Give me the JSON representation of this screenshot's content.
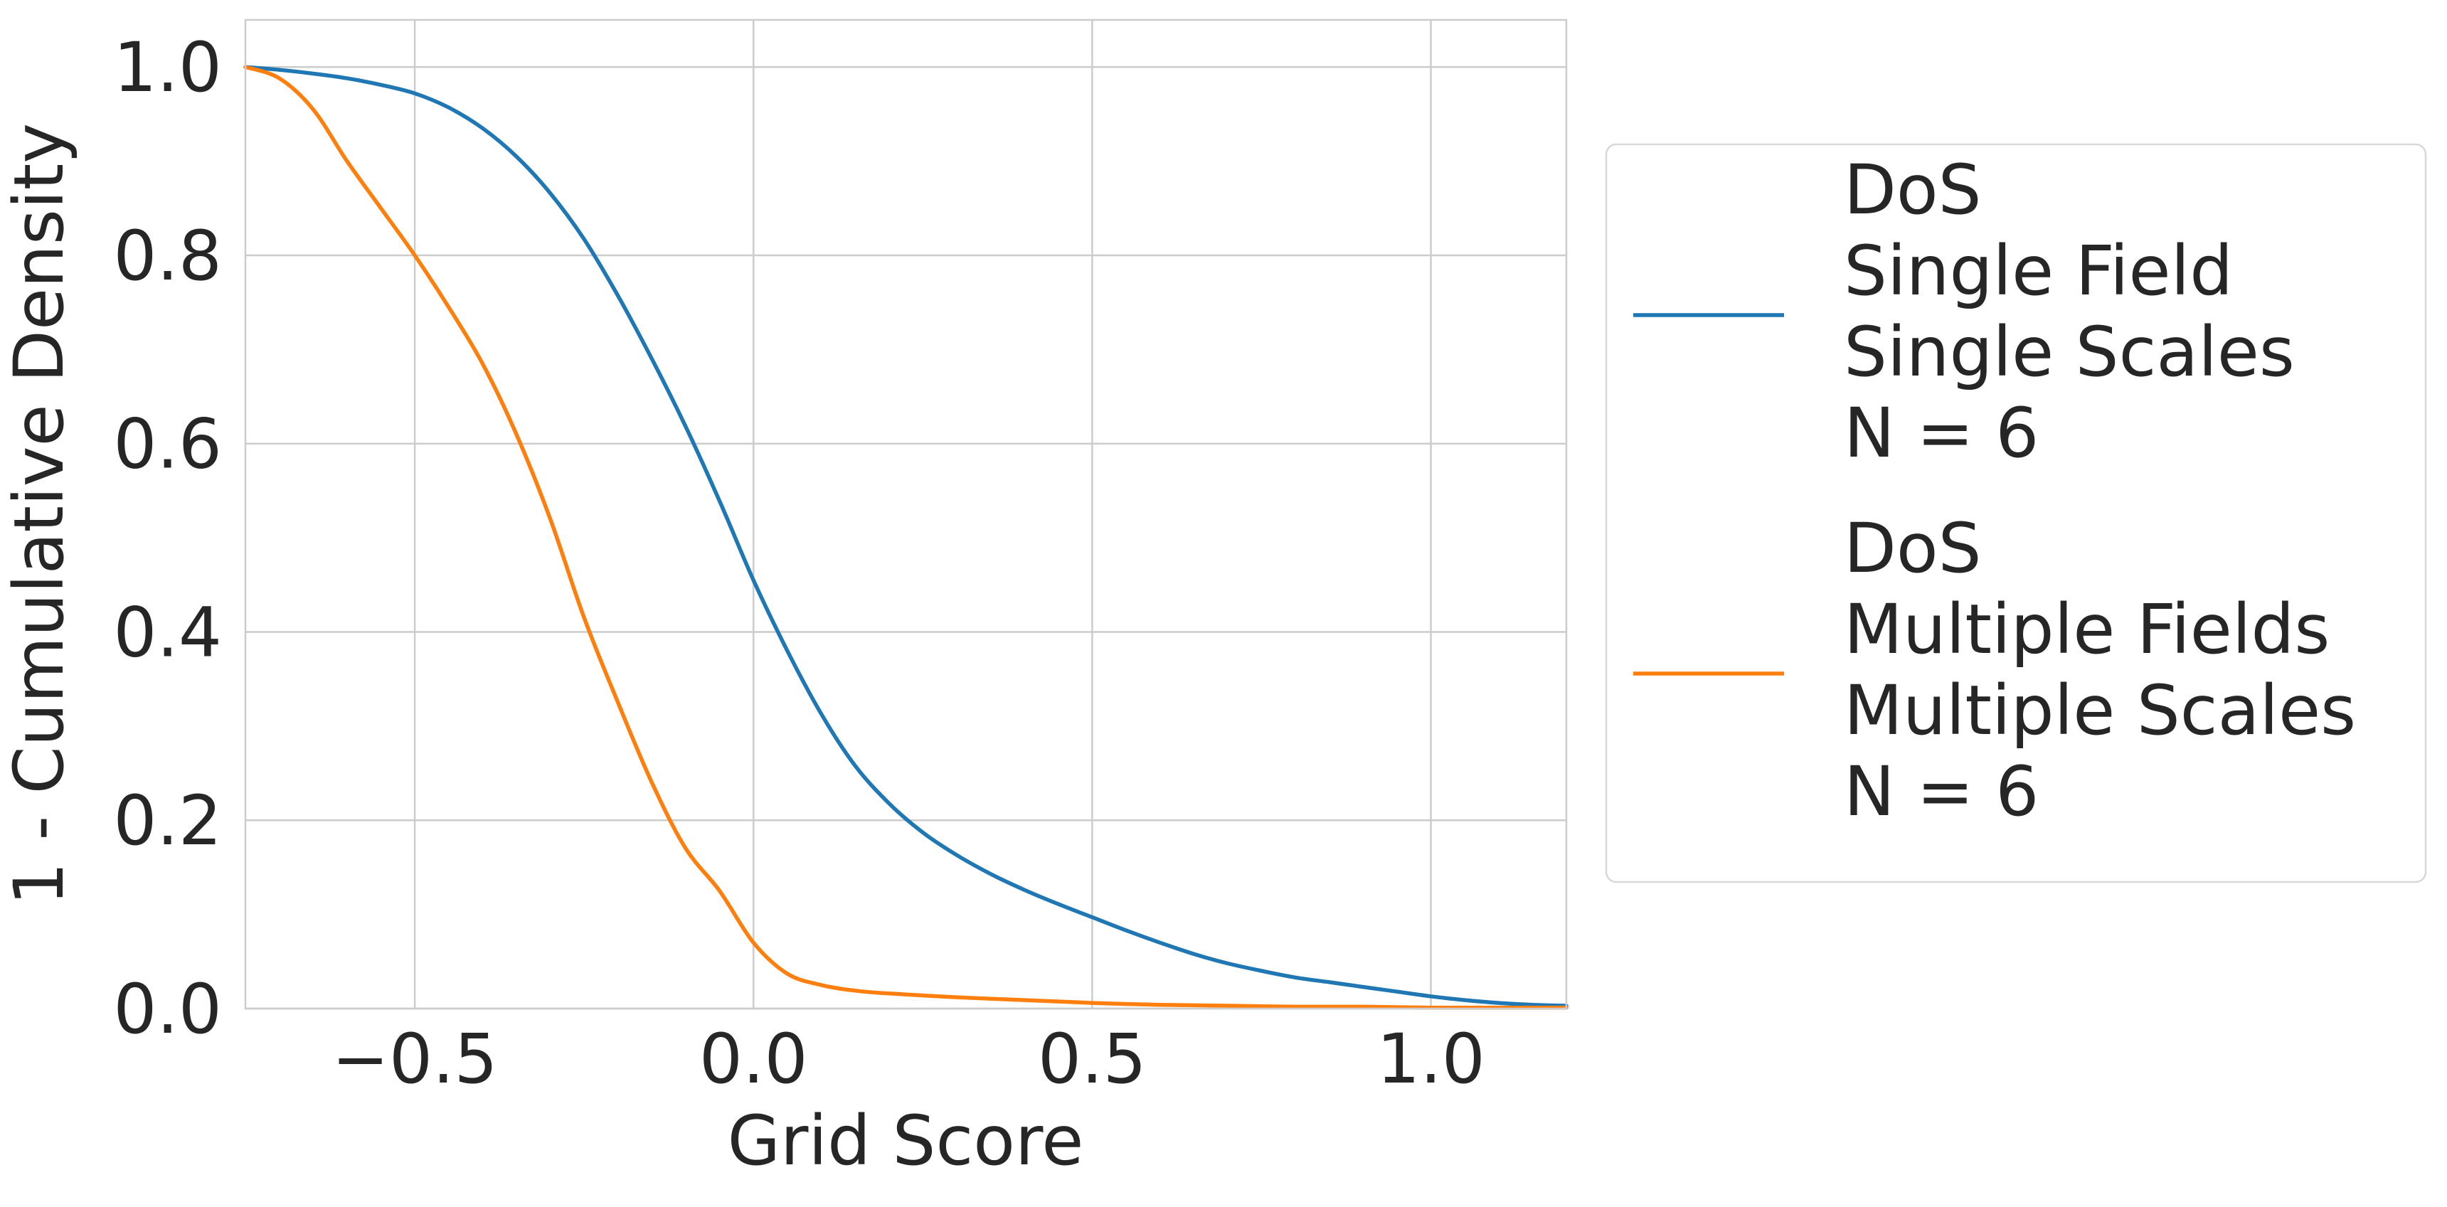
{
  "chart_data": {
    "type": "line",
    "title": "",
    "xlabel": "Grid Score",
    "ylabel": "1 - Cumulative Density",
    "xlim": [
      -0.75,
      1.2
    ],
    "ylim": [
      0.0,
      1.05
    ],
    "xticks": [
      -0.5,
      0.0,
      0.5,
      1.0
    ],
    "xtick_labels": [
      "−0.5",
      "0.0",
      "0.5",
      "1.0"
    ],
    "yticks": [
      0.0,
      0.2,
      0.4,
      0.6,
      0.8,
      1.0
    ],
    "ytick_labels": [
      "0.0",
      "0.2",
      "0.4",
      "0.6",
      "0.8",
      "1.0"
    ],
    "grid": true,
    "legend_position": "right",
    "series": [
      {
        "name": "DoS\nSingle Field\nSingle Scales\nN = 6",
        "legend_lines": [
          "DoS",
          "Single Field",
          "Single Scales",
          "N = 6"
        ],
        "color": "#1f77b4",
        "x": [
          -0.75,
          -0.7,
          -0.65,
          -0.6,
          -0.55,
          -0.5,
          -0.45,
          -0.4,
          -0.35,
          -0.3,
          -0.25,
          -0.2,
          -0.15,
          -0.1,
          -0.05,
          0.0,
          0.05,
          0.1,
          0.15,
          0.2,
          0.25,
          0.3,
          0.35,
          0.4,
          0.45,
          0.5,
          0.55,
          0.6,
          0.65,
          0.7,
          0.75,
          0.8,
          0.85,
          0.9,
          0.95,
          1.0,
          1.05,
          1.1,
          1.15,
          1.2
        ],
        "y": [
          1.0,
          0.997,
          0.993,
          0.988,
          0.981,
          0.972,
          0.957,
          0.935,
          0.905,
          0.866,
          0.817,
          0.757,
          0.69,
          0.618,
          0.539,
          0.455,
          0.38,
          0.313,
          0.258,
          0.218,
          0.187,
          0.163,
          0.143,
          0.126,
          0.111,
          0.097,
          0.083,
          0.07,
          0.058,
          0.048,
          0.04,
          0.033,
          0.028,
          0.023,
          0.018,
          0.013,
          0.009,
          0.006,
          0.004,
          0.003
        ]
      },
      {
        "name": "DoS\nMultiple Fields\nMultiple Scales\nN = 6",
        "legend_lines": [
          "DoS",
          "Multiple Fields",
          "Multiple Scales",
          "N = 6"
        ],
        "color": "#ff7f0e",
        "x": [
          -0.75,
          -0.7,
          -0.65,
          -0.6,
          -0.55,
          -0.5,
          -0.45,
          -0.4,
          -0.35,
          -0.3,
          -0.25,
          -0.2,
          -0.15,
          -0.1,
          -0.05,
          0.0,
          0.05,
          0.1,
          0.15,
          0.2,
          0.3,
          0.4,
          0.5,
          0.6,
          0.7,
          0.8,
          0.9,
          1.0,
          1.1,
          1.2
        ],
        "y": [
          1.0,
          0.988,
          0.955,
          0.9,
          0.85,
          0.8,
          0.745,
          0.685,
          0.61,
          0.52,
          0.415,
          0.325,
          0.24,
          0.17,
          0.125,
          0.07,
          0.037,
          0.025,
          0.019,
          0.016,
          0.012,
          0.009,
          0.006,
          0.004,
          0.003,
          0.002,
          0.002,
          0.001,
          0.001,
          0.001
        ]
      }
    ]
  }
}
